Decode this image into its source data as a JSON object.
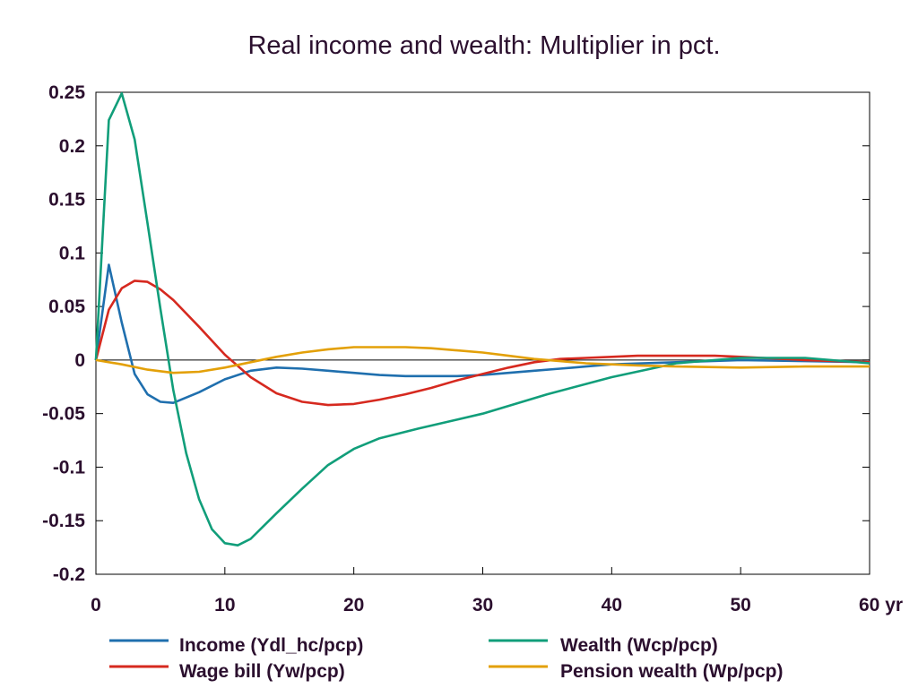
{
  "chart_data": {
    "type": "line",
    "title": "Real income and wealth: Multiplier in pct.",
    "xlim": [
      0,
      60
    ],
    "ylim": [
      -0.2,
      0.25
    ],
    "x_ticks": [
      "0",
      "10",
      "20",
      "30",
      "40",
      "50",
      "60 yr"
    ],
    "y_ticks": [
      "0.25",
      "0.2",
      "0.15",
      "0.1",
      "0.05",
      "0",
      "-0.05",
      "-0.1",
      "-0.15",
      "-0.2"
    ],
    "grid": false,
    "legend_position": "bottom",
    "series": [
      {
        "name": "Income (Ydl_hc/pcp)",
        "color": "#1f6fae",
        "x": [
          0,
          1,
          2,
          3,
          4,
          5,
          6,
          8,
          10,
          12,
          14,
          16,
          18,
          20,
          22,
          24,
          26,
          28,
          30,
          32,
          34,
          36,
          38,
          40,
          45,
          50,
          55,
          60
        ],
        "y": [
          0,
          0.089,
          0.035,
          -0.013,
          -0.032,
          -0.039,
          -0.04,
          -0.03,
          -0.018,
          -0.01,
          -0.007,
          -0.008,
          -0.01,
          -0.012,
          -0.014,
          -0.015,
          -0.015,
          -0.015,
          -0.014,
          -0.012,
          -0.01,
          -0.008,
          -0.006,
          -0.004,
          -0.002,
          0.0,
          -0.001,
          -0.002
        ]
      },
      {
        "name": "Wage bill (Yw/pcp)",
        "color": "#d6291f",
        "x": [
          0,
          1,
          2,
          3,
          4,
          5,
          6,
          8,
          10,
          12,
          14,
          16,
          18,
          20,
          22,
          24,
          26,
          28,
          30,
          32,
          34,
          36,
          38,
          40,
          42,
          45,
          48,
          50,
          55,
          60
        ],
        "y": [
          0,
          0.047,
          0.067,
          0.074,
          0.073,
          0.066,
          0.056,
          0.031,
          0.005,
          -0.016,
          -0.031,
          -0.039,
          -0.042,
          -0.041,
          -0.037,
          -0.032,
          -0.026,
          -0.019,
          -0.013,
          -0.007,
          -0.002,
          0.001,
          0.002,
          0.003,
          0.004,
          0.004,
          0.004,
          0.003,
          0.0,
          -0.002
        ]
      },
      {
        "name": "Wealth (Wcp/pcp)",
        "color": "#119e7a",
        "x": [
          0,
          1,
          2,
          3,
          4,
          5,
          6,
          7,
          8,
          9,
          10,
          11,
          12,
          13,
          14,
          16,
          18,
          20,
          22,
          25,
          30,
          35,
          40,
          45,
          50,
          55,
          60
        ],
        "y": [
          0,
          0.224,
          0.249,
          0.206,
          0.128,
          0.048,
          -0.028,
          -0.087,
          -0.13,
          -0.158,
          -0.171,
          -0.173,
          -0.167,
          -0.155,
          -0.143,
          -0.12,
          -0.098,
          -0.083,
          -0.073,
          -0.064,
          -0.05,
          -0.032,
          -0.016,
          -0.003,
          0.002,
          0.002,
          -0.003
        ]
      },
      {
        "name": "Pension wealth (Wp/pcp)",
        "color": "#e3a008",
        "x": [
          0,
          2,
          4,
          6,
          8,
          10,
          12,
          14,
          16,
          18,
          20,
          22,
          24,
          26,
          28,
          30,
          32,
          34,
          36,
          38,
          40,
          42,
          45,
          50,
          55,
          60
        ],
        "y": [
          0,
          -0.004,
          -0.009,
          -0.012,
          -0.011,
          -0.007,
          -0.002,
          0.003,
          0.007,
          0.01,
          0.012,
          0.012,
          0.012,
          0.011,
          0.009,
          0.007,
          0.004,
          0.001,
          -0.001,
          -0.003,
          -0.004,
          -0.005,
          -0.006,
          -0.007,
          -0.006,
          -0.006
        ]
      }
    ]
  }
}
